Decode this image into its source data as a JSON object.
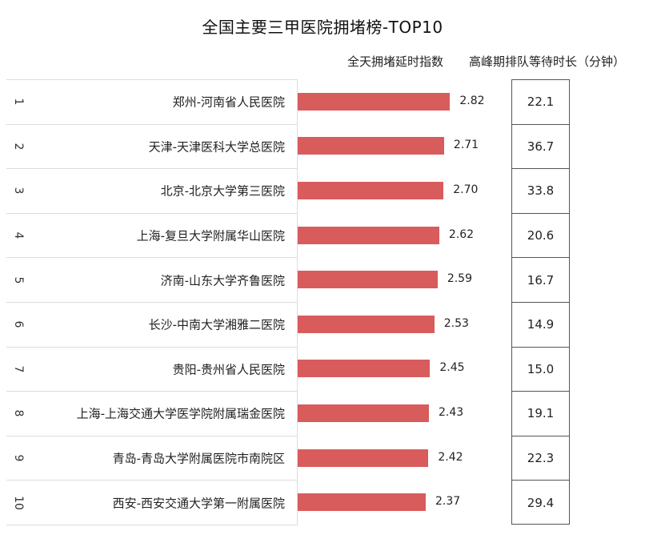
{
  "title": "全国主要三甲医院拥堵榜-TOP10",
  "columns": {
    "index": "全天拥堵延时指数",
    "wait": "高峰期排队等待时长（分钟）"
  },
  "colors": {
    "bar": "#d95c5c"
  },
  "chart_data": {
    "type": "bar",
    "orientation": "horizontal",
    "title": "全国主要三甲医院拥堵榜-TOP10",
    "ranks": [
      "1",
      "2",
      "3",
      "4",
      "5",
      "6",
      "7",
      "8",
      "9",
      "10"
    ],
    "categories": [
      "郑州-河南省人民医院",
      "天津-天津医科大学总医院",
      "北京-北京大学第三医院",
      "上海-复旦大学附属华山医院",
      "济南-山东大学齐鲁医院",
      "长沙-中南大学湘雅二医院",
      "贵阳-贵州省人民医院",
      "上海-上海交通大学医学院附属瑞金医院",
      "青岛-青岛大学附属医院市南院区",
      "西安-西安交通大学第一附属医院"
    ],
    "series": [
      {
        "name": "全天拥堵延时指数",
        "values": [
          2.82,
          2.71,
          2.7,
          2.62,
          2.59,
          2.53,
          2.45,
          2.43,
          2.42,
          2.37
        ],
        "labels": [
          "2.82",
          "2.71",
          "2.70",
          "2.62",
          "2.59",
          "2.53",
          "2.45",
          "2.43",
          "2.42",
          "2.37"
        ]
      },
      {
        "name": "高峰期排队等待时长（分钟）",
        "values": [
          22.1,
          36.7,
          33.8,
          20.6,
          16.7,
          14.9,
          15.0,
          19.1,
          22.3,
          29.4
        ],
        "labels": [
          "22.1",
          "36.7",
          "33.8",
          "20.6",
          "16.7",
          "14.9",
          "15.0",
          "19.1",
          "22.3",
          "29.4"
        ]
      }
    ],
    "xlim": [
      0,
      3.2
    ],
    "grid": false,
    "legend": "none"
  }
}
